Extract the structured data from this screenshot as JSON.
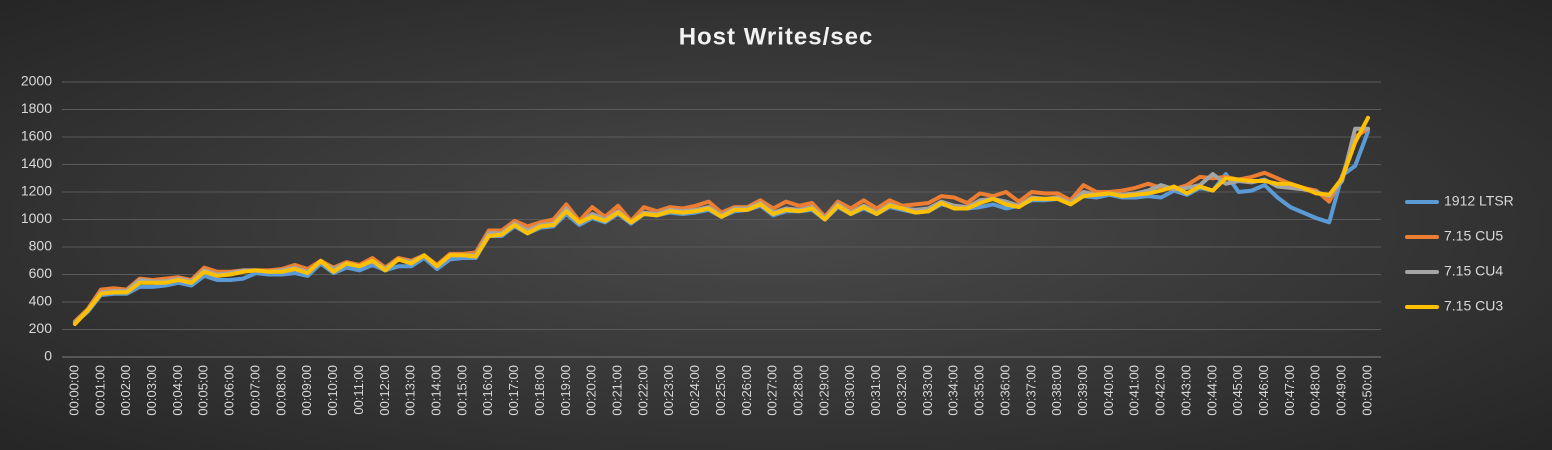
{
  "chart_data": {
    "type": "line",
    "title": "Host Writes/sec",
    "categories": [
      "00:00:00",
      null,
      "00:01:00",
      null,
      "00:02:00",
      null,
      "00:03:00",
      null,
      "00:04:00",
      null,
      "00:05:00",
      null,
      "00:06:00",
      null,
      "00:07:00",
      null,
      "00:08:00",
      null,
      "00:09:00",
      null,
      "00:10:00",
      null,
      "00:11:00",
      null,
      "00:12:00",
      null,
      "00:13:00",
      null,
      "00:14:00",
      null,
      "00:15:00",
      null,
      "00:16:00",
      null,
      "00:17:00",
      null,
      "00:18:00",
      null,
      "00:19:00",
      null,
      "00:20:00",
      null,
      "00:21:00",
      null,
      "00:22:00",
      null,
      "00:23:00",
      null,
      "00:24:00",
      null,
      "00:25:00",
      null,
      "00:26:00",
      null,
      "00:27:00",
      null,
      "00:28:00",
      null,
      "00:29:00",
      null,
      "00:30:00",
      null,
      "00:31:00",
      null,
      "00:32:00",
      null,
      "00:33:00",
      null,
      "00:34:00",
      null,
      "00:35:00",
      null,
      "00:36:00",
      null,
      "00:37:00",
      null,
      "00:38:00",
      null,
      "00:39:00",
      null,
      "00:40:00",
      null,
      "00:41:00",
      null,
      "00:42:00",
      null,
      "00:43:00",
      null,
      "00:44:00",
      null,
      "00:45:00",
      null,
      "00:46:00",
      null,
      "00:47:00",
      null,
      "00:48:00",
      null,
      "00:49:00",
      null,
      "00:50:00"
    ],
    "series": [
      {
        "name": "1912 LTSR",
        "color": "#5b9bd5",
        "values": [
          250,
          330,
          450,
          460,
          460,
          510,
          510,
          520,
          540,
          520,
          590,
          560,
          560,
          570,
          610,
          600,
          600,
          610,
          590,
          680,
          610,
          650,
          630,
          670,
          630,
          660,
          660,
          720,
          640,
          710,
          720,
          720,
          880,
          880,
          950,
          900,
          940,
          950,
          1040,
          960,
          1010,
          980,
          1040,
          970,
          1040,
          1030,
          1050,
          1040,
          1050,
          1070,
          1020,
          1060,
          1070,
          1100,
          1030,
          1060,
          1060,
          1070,
          1000,
          1090,
          1040,
          1080,
          1040,
          1090,
          1070,
          1050,
          1060,
          1110,
          1090,
          1080,
          1090,
          1110,
          1080,
          1100,
          1140,
          1140,
          1150,
          1120,
          1170,
          1160,
          1180,
          1160,
          1160,
          1170,
          1160,
          1210,
          1180,
          1230,
          1210,
          1330,
          1200,
          1210,
          1250,
          1160,
          1090,
          1050,
          1010,
          980,
          1320,
          1390,
          1640
        ]
      },
      {
        "name": "7.15 CU5",
        "color": "#ed7d31",
        "values": [
          260,
          350,
          490,
          500,
          490,
          570,
          560,
          570,
          580,
          560,
          650,
          620,
          620,
          630,
          630,
          630,
          640,
          670,
          640,
          700,
          650,
          690,
          670,
          720,
          650,
          720,
          700,
          740,
          670,
          750,
          750,
          760,
          920,
          920,
          990,
          950,
          980,
          1000,
          1110,
          990,
          1090,
          1020,
          1100,
          990,
          1090,
          1060,
          1090,
          1080,
          1100,
          1130,
          1050,
          1090,
          1090,
          1140,
          1080,
          1130,
          1100,
          1120,
          1020,
          1130,
          1080,
          1140,
          1080,
          1140,
          1100,
          1110,
          1120,
          1170,
          1160,
          1120,
          1190,
          1170,
          1200,
          1130,
          1200,
          1190,
          1190,
          1140,
          1250,
          1200,
          1200,
          1210,
          1230,
          1260,
          1230,
          1220,
          1250,
          1310,
          1300,
          1310,
          1290,
          1310,
          1340,
          1300,
          1260,
          1230,
          1210,
          1130,
          1310,
          1600,
          1660
        ]
      },
      {
        "name": "7.15 CU4",
        "color": "#a5a5a5",
        "values": [
          250,
          340,
          470,
          480,
          480,
          560,
          550,
          550,
          570,
          550,
          630,
          600,
          610,
          630,
          630,
          620,
          630,
          650,
          620,
          690,
          640,
          680,
          660,
          700,
          640,
          710,
          690,
          740,
          660,
          740,
          740,
          740,
          900,
          900,
          970,
          920,
          960,
          970,
          1080,
          970,
          1040,
          1000,
          1060,
          980,
          1050,
          1040,
          1070,
          1060,
          1070,
          1090,
          1030,
          1080,
          1080,
          1120,
          1050,
          1080,
          1070,
          1090,
          1010,
          1110,
          1050,
          1100,
          1050,
          1110,
          1080,
          1070,
          1080,
          1130,
          1100,
          1090,
          1140,
          1150,
          1130,
          1100,
          1160,
          1150,
          1160,
          1120,
          1200,
          1180,
          1190,
          1180,
          1190,
          1210,
          1250,
          1220,
          1230,
          1250,
          1330,
          1260,
          1280,
          1270,
          1290,
          1240,
          1230,
          1220,
          1200,
          1170,
          1280,
          1660,
          1660
        ]
      },
      {
        "name": "7.15 CU3",
        "color": "#ffc000",
        "values": [
          240,
          340,
          460,
          470,
          470,
          540,
          540,
          540,
          560,
          540,
          620,
          590,
          600,
          620,
          630,
          620,
          620,
          640,
          610,
          700,
          620,
          680,
          660,
          700,
          630,
          710,
          680,
          740,
          660,
          740,
          740,
          730,
          880,
          890,
          960,
          900,
          950,
          960,
          1060,
          980,
          1020,
          990,
          1050,
          980,
          1040,
          1030,
          1060,
          1050,
          1060,
          1080,
          1020,
          1070,
          1070,
          1110,
          1040,
          1070,
          1060,
          1080,
          1000,
          1100,
          1040,
          1090,
          1040,
          1100,
          1080,
          1050,
          1060,
          1120,
          1080,
          1080,
          1120,
          1150,
          1110,
          1090,
          1150,
          1150,
          1150,
          1110,
          1170,
          1180,
          1190,
          1170,
          1180,
          1190,
          1210,
          1240,
          1190,
          1240,
          1210,
          1300,
          1290,
          1280,
          1280,
          1260,
          1260,
          1230,
          1190,
          1180,
          1300,
          1560,
          1740
        ]
      }
    ],
    "ylim": [
      0,
      2000
    ],
    "yticks": [
      0,
      200,
      400,
      600,
      800,
      1000,
      1200,
      1400,
      1600,
      1800,
      2000
    ],
    "grid": true,
    "legend": "right"
  }
}
